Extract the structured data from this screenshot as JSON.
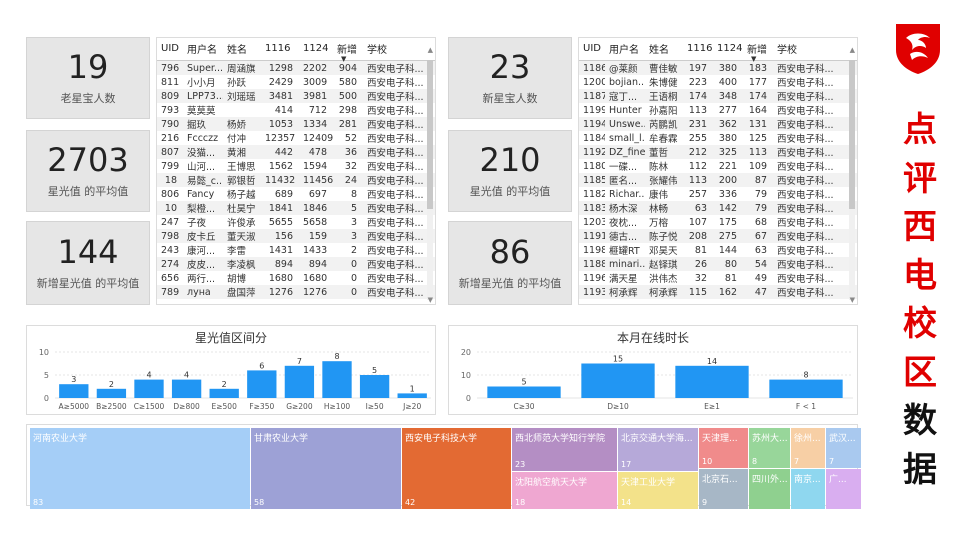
{
  "kpis_left": [
    {
      "value": "19",
      "label": "老星宝人数"
    },
    {
      "value": "2703",
      "label": "星光值 的平均值"
    },
    {
      "value": "144",
      "label": "新增星光值 的平均值"
    }
  ],
  "kpis_right": [
    {
      "value": "23",
      "label": "新星宝人数"
    },
    {
      "value": "210",
      "label": "星光值 的平均值"
    },
    {
      "value": "86",
      "label": "新增星光值 的平均值"
    }
  ],
  "table_columns": [
    "UID",
    "用户名",
    "姓名",
    "1116",
    "1124",
    "新增",
    "学校"
  ],
  "table_left_rows": [
    [
      "796",
      "Super...",
      "周涵旗",
      "1298",
      "2202",
      "904",
      "西安电子科..."
    ],
    [
      "811",
      "小小月",
      "孙跃",
      "2429",
      "3009",
      "580",
      "西安电子科..."
    ],
    [
      "809",
      "LPP73...",
      "刘瑶瑶",
      "3481",
      "3981",
      "500",
      "西安电子科..."
    ],
    [
      "793",
      "莫莫莫",
      "",
      "414",
      "712",
      "298",
      "西安电子科..."
    ],
    [
      "790",
      "掘玖",
      "杨娇",
      "1053",
      "1334",
      "281",
      "西安电子科..."
    ],
    [
      "216",
      "Fccczz",
      "付冲",
      "12357",
      "12409",
      "52",
      "西安电子科..."
    ],
    [
      "807",
      "没猫...",
      "黄湘",
      "442",
      "478",
      "36",
      "西安电子科..."
    ],
    [
      "799",
      "山河...",
      "王博思",
      "1562",
      "1594",
      "32",
      "西安电子科..."
    ],
    [
      "18",
      "易懿_c...",
      "郭银哲",
      "11432",
      "11456",
      "24",
      "西安电子科..."
    ],
    [
      "806",
      "Fancy",
      "杨子越",
      "689",
      "697",
      "8",
      "西安电子科..."
    ],
    [
      "10",
      "梨橙...",
      "杜昊宁",
      "1841",
      "1846",
      "5",
      "西安电子科..."
    ],
    [
      "247",
      "子夜",
      "许俊承",
      "5655",
      "5658",
      "3",
      "西安电子科..."
    ],
    [
      "798",
      "皮卡丘",
      "董天淑",
      "156",
      "159",
      "3",
      "西安电子科..."
    ],
    [
      "243",
      "康河...",
      "李雷",
      "1431",
      "1433",
      "2",
      "西安电子科..."
    ],
    [
      "274",
      "皮皮...",
      "李凌枫",
      "894",
      "894",
      "0",
      "西安电子科..."
    ],
    [
      "656",
      "两行...",
      "胡博",
      "1680",
      "1680",
      "0",
      "西安电子科..."
    ],
    [
      "789",
      "луна",
      "盘国萍",
      "1276",
      "1276",
      "0",
      "西安电子科..."
    ]
  ],
  "table_right_rows": [
    [
      "1186",
      "@莱颜",
      "曹佳敏",
      "197",
      "380",
      "183",
      "西安电子科..."
    ],
    [
      "1200",
      "bojian...",
      "朱博健",
      "223",
      "400",
      "177",
      "西安电子科..."
    ],
    [
      "1187",
      "寇丁...",
      "王语桐",
      "174",
      "348",
      "174",
      "西安电子科..."
    ],
    [
      "1199",
      "Hunter",
      "孙嘉阳",
      "113",
      "277",
      "164",
      "西安电子科..."
    ],
    [
      "1194",
      "Unswe...",
      "芮鹏凯",
      "231",
      "362",
      "131",
      "西安电子科..."
    ],
    [
      "1184",
      "small_l...",
      "牟春霖",
      "255",
      "380",
      "125",
      "西安电子科..."
    ],
    [
      "1192",
      "DZ_fine",
      "董哲",
      "212",
      "325",
      "113",
      "西安电子科..."
    ],
    [
      "1180",
      "一碟...",
      "陈林",
      "112",
      "221",
      "109",
      "西安电子科..."
    ],
    [
      "1185",
      "匿名...",
      "张耀伟",
      "113",
      "200",
      "87",
      "西安电子科..."
    ],
    [
      "1182",
      "Richar...",
      "康伟",
      "257",
      "336",
      "79",
      "西安电子科..."
    ],
    [
      "1183",
      "杨木深",
      "林畅",
      "63",
      "142",
      "79",
      "西安电子科..."
    ],
    [
      "1203",
      "夜枕...",
      "万榕",
      "107",
      "175",
      "68",
      "西安电子科..."
    ],
    [
      "1191",
      "德古...",
      "陈子悦",
      "208",
      "275",
      "67",
      "西安电子科..."
    ],
    [
      "1198",
      "榧罐RT",
      "邓昊天",
      "81",
      "144",
      "63",
      "西安电子科..."
    ],
    [
      "1188",
      "minari...",
      "赵铎琪",
      "26",
      "80",
      "54",
      "西安电子科..."
    ],
    [
      "1196",
      "满天星",
      "洪伟杰",
      "32",
      "81",
      "49",
      "西安电子科..."
    ],
    [
      "1193",
      "柯承辉",
      "柯承辉",
      "115",
      "162",
      "47",
      "西安电子科..."
    ]
  ],
  "chart_data": [
    {
      "type": "bar",
      "title": "星光值区间分",
      "categories": [
        "A≥5000",
        "B≥2500",
        "C≥1500",
        "D≥800",
        "E≥500",
        "F≥350",
        "G≥200",
        "H≥100",
        "I≥50",
        "J≥20"
      ],
      "values": [
        3,
        2,
        4,
        4,
        2,
        6,
        7,
        8,
        5,
        1
      ],
      "ylim": [
        0,
        10
      ],
      "yticks": [
        0,
        5,
        10
      ],
      "color": "#2196F3"
    },
    {
      "type": "bar",
      "title": "本月在线时长",
      "categories": [
        "C≥30",
        "D≥10",
        "E≥1",
        "F < 1"
      ],
      "values": [
        5,
        15,
        14,
        8
      ],
      "ylim": [
        0,
        20
      ],
      "yticks": [
        0,
        10,
        20
      ],
      "color": "#2196F3"
    }
  ],
  "treemap": [
    {
      "name": "河南农业大学",
      "count": "83",
      "color": "#a5cef7"
    },
    {
      "name": "甘肃农业大学",
      "count": "58",
      "color": "#9da1d6"
    },
    {
      "name": "西安电子科技大学",
      "count": "42",
      "color": "#e36a33"
    },
    {
      "name": "西北师范大学知行学院",
      "count": "23",
      "color": "#b48ec4"
    },
    {
      "name": "北京交通大学海...",
      "count": "17",
      "color": "#b6a9d9"
    },
    {
      "name": "沈阳航空航天大学",
      "count": "18",
      "color": "#efa7d1"
    },
    {
      "name": "天津工业大学",
      "count": "14",
      "color": "#f3e28a"
    },
    {
      "name": "天津理...",
      "count": "10",
      "color": "#f08b8b"
    },
    {
      "name": "北京石...",
      "count": "9",
      "color": "#a7b7c6"
    },
    {
      "name": "苏州大...",
      "count": "8",
      "color": "#98d69a"
    },
    {
      "name": "四川外...",
      "count": "",
      "color": "#8fd08f"
    },
    {
      "name": "徐州...",
      "count": "7",
      "color": "#f7cfa5"
    },
    {
      "name": "南京...",
      "count": "",
      "color": "#8fd7ef"
    },
    {
      "name": "武汉...",
      "count": "7",
      "color": "#a9c9ef"
    },
    {
      "name": "广...",
      "count": "",
      "color": "#d9aef0"
    }
  ],
  "vertical_title": [
    "点",
    "评",
    "西",
    "电",
    "校",
    "区",
    "数",
    "据"
  ],
  "colors": {
    "title_red": "#e00000",
    "bar_blue": "#2196F3",
    "logo_red": "#e00000"
  }
}
